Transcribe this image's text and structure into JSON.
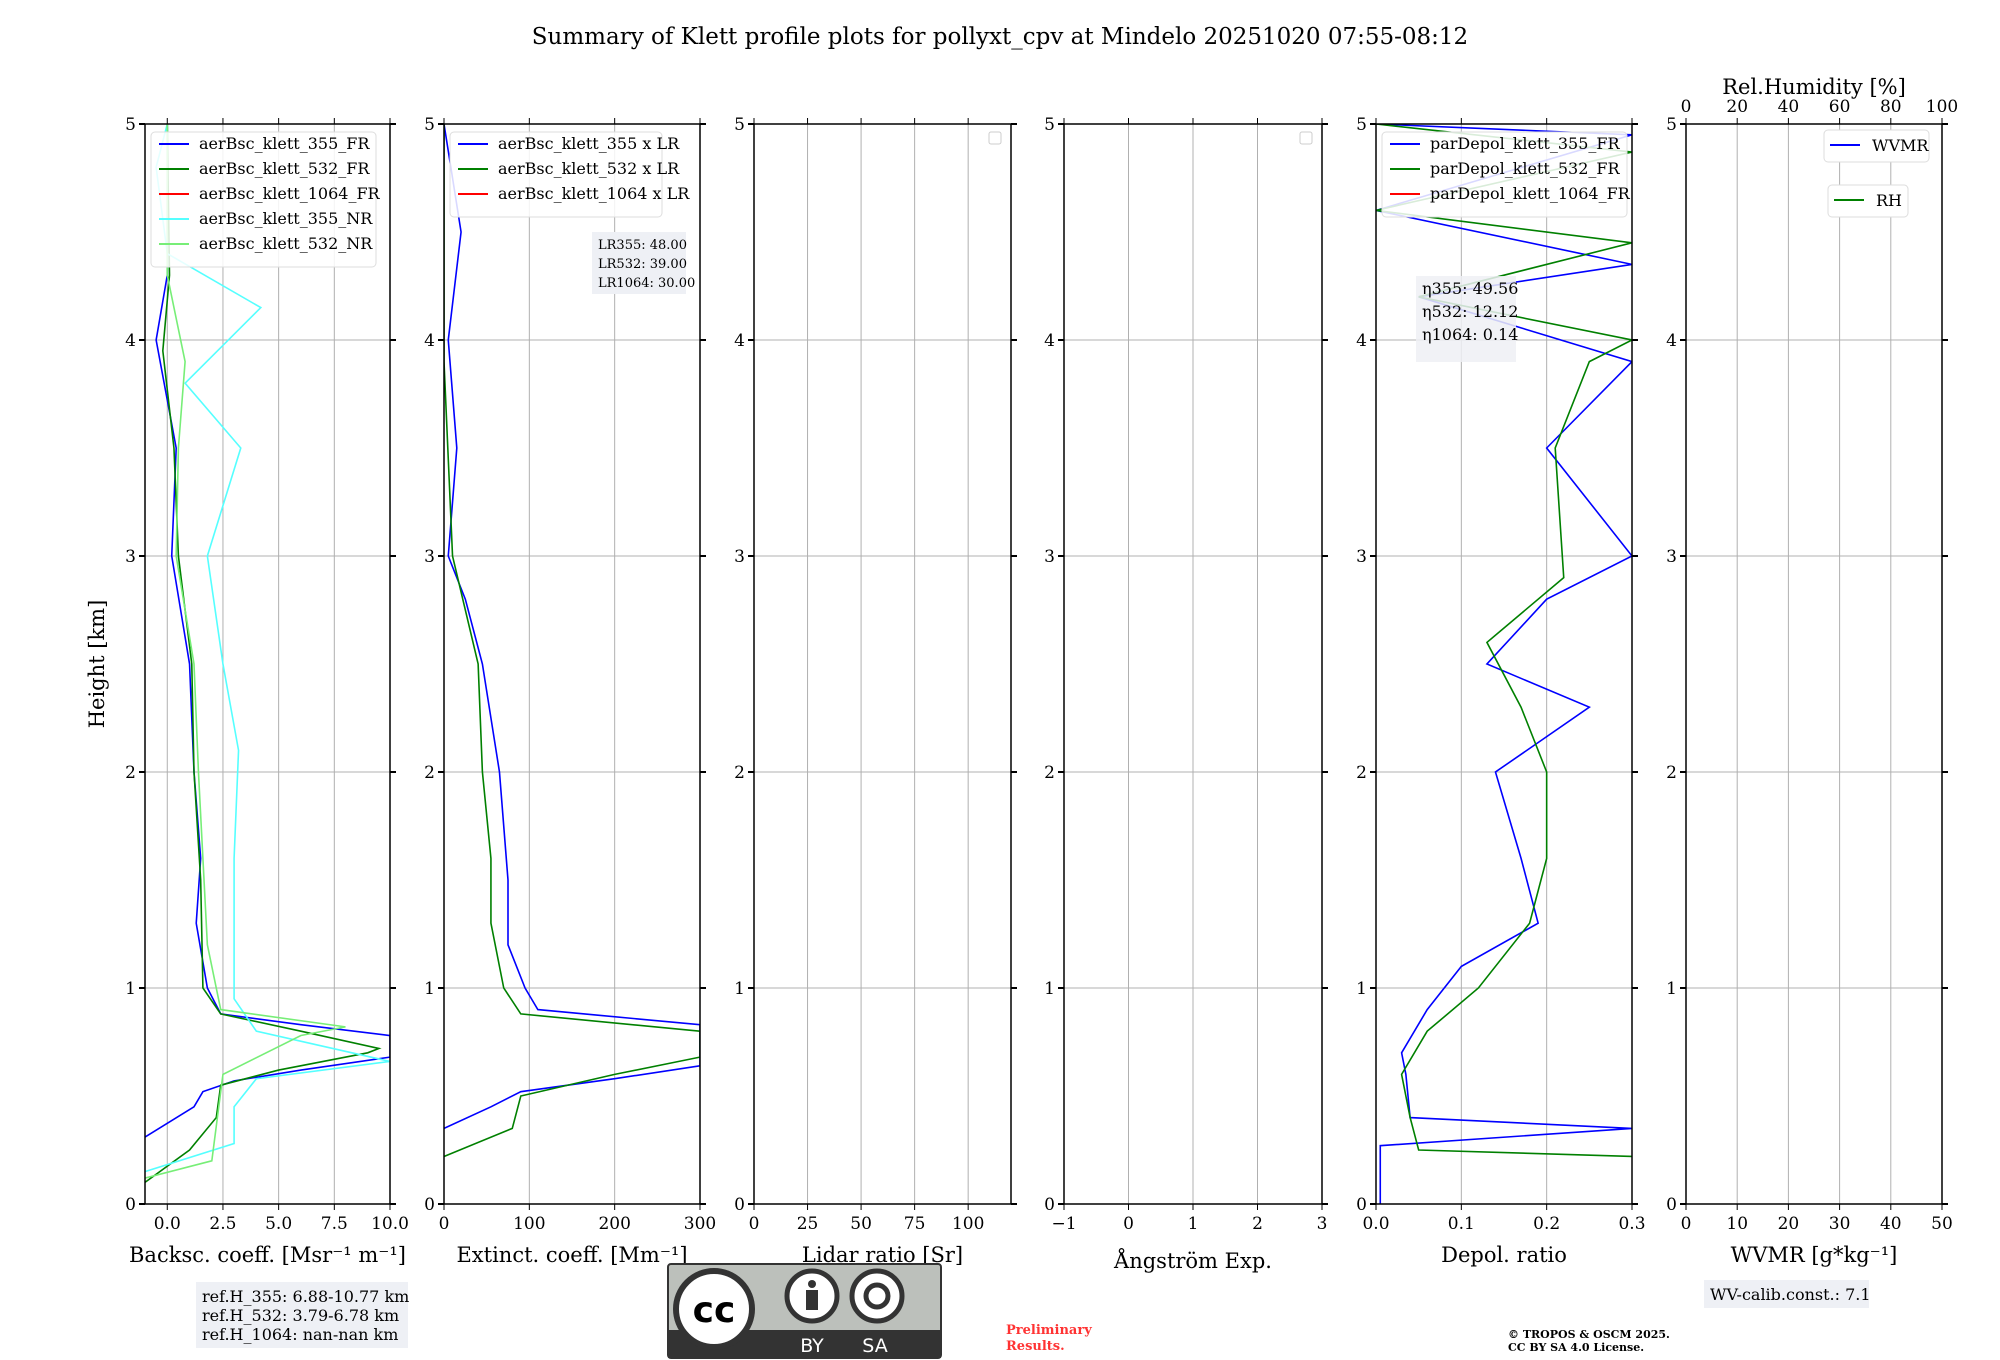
{
  "title": "Summary of Klett profile plots for pollyxt_cpv at Mindelo 20251020 07:55-08:12",
  "ylabel": "Height [km]",
  "colors": {
    "c355": "#0000ff",
    "c532": "#008000",
    "c1064": "#ff0000",
    "c355nr": "#55ffff",
    "c532nr": "#77ee77"
  },
  "chart_data": [
    {
      "type": "line",
      "id": "bsc",
      "xlabel": "Backsc. coeff. [Msr⁻¹ m⁻¹]",
      "xlim": [
        -1,
        10
      ],
      "ylim": [
        0,
        5
      ],
      "xticks": [
        "0.0",
        "2.5",
        "5.0",
        "7.5",
        "10.0"
      ],
      "xtickvals": [
        0,
        2.5,
        5,
        7.5,
        10
      ],
      "legend": [
        "aerBsc_klett_355_FR",
        "aerBsc_klett_532_FR",
        "aerBsc_klett_1064_FR",
        "aerBsc_klett_355_NR",
        "aerBsc_klett_532_NR"
      ],
      "series": [
        {
          "name": "aerBsc_klett_355_FR",
          "color": "#0000ff",
          "points": [
            [
              -1,
              0.31
            ],
            [
              1.2,
              0.45
            ],
            [
              1.6,
              0.52
            ],
            [
              3,
              0.57
            ],
            [
              6,
              0.62
            ],
            [
              10,
              0.68
            ],
            [
              10,
              0.78
            ],
            [
              6,
              0.83
            ],
            [
              2.4,
              0.88
            ],
            [
              1.8,
              1.0
            ],
            [
              1.3,
              1.3
            ],
            [
              1.5,
              1.6
            ],
            [
              1.2,
              2.0
            ],
            [
              1.0,
              2.5
            ],
            [
              0.2,
              3.0
            ],
            [
              0.4,
              3.5
            ],
            [
              -0.5,
              4.0
            ],
            [
              0,
              4.3
            ],
            [
              0,
              5
            ]
          ]
        },
        {
          "name": "aerBsc_klett_532_FR",
          "color": "#008000",
          "points": [
            [
              -1,
              0.1
            ],
            [
              1,
              0.25
            ],
            [
              2.2,
              0.4
            ],
            [
              2.4,
              0.55
            ],
            [
              5,
              0.62
            ],
            [
              9,
              0.7
            ],
            [
              9.5,
              0.72
            ],
            [
              6,
              0.8
            ],
            [
              2.4,
              0.88
            ],
            [
              1.6,
              1.0
            ],
            [
              1.5,
              1.5
            ],
            [
              1.2,
              2.0
            ],
            [
              1.1,
              2.5
            ],
            [
              0.5,
              3.0
            ],
            [
              0.3,
              3.5
            ],
            [
              -0.2,
              3.95
            ],
            [
              0.1,
              4.3
            ],
            [
              0,
              5
            ]
          ]
        },
        {
          "name": "aerBsc_klett_355_NR",
          "color": "#55ffff",
          "points": [
            [
              -1,
              0.15
            ],
            [
              3,
              0.28
            ],
            [
              3,
              0.45
            ],
            [
              4,
              0.58
            ],
            [
              10,
              0.66
            ],
            [
              4,
              0.8
            ],
            [
              3,
              0.95
            ],
            [
              3,
              1.3
            ],
            [
              3,
              1.6
            ],
            [
              3.2,
              2.1
            ],
            [
              2.5,
              2.5
            ],
            [
              1.8,
              3.0
            ],
            [
              3.3,
              3.5
            ],
            [
              0.8,
              3.8
            ],
            [
              4.2,
              4.15
            ],
            [
              0,
              4.4
            ],
            [
              -0.5,
              4.8
            ],
            [
              0,
              5
            ]
          ]
        },
        {
          "name": "aerBsc_klett_532_NR",
          "color": "#77ee77",
          "points": [
            [
              -1,
              0.12
            ],
            [
              2,
              0.2
            ],
            [
              2.5,
              0.6
            ],
            [
              6,
              0.78
            ],
            [
              8,
              0.82
            ],
            [
              2.4,
              0.9
            ],
            [
              1.8,
              1.2
            ],
            [
              1.6,
              1.6
            ],
            [
              1.4,
              2.0
            ],
            [
              1.2,
              2.5
            ],
            [
              0.4,
              3.0
            ],
            [
              0.5,
              3.5
            ],
            [
              0.8,
              3.9
            ],
            [
              0,
              4.3
            ],
            [
              0,
              5
            ]
          ]
        }
      ],
      "annotation": [
        "ref.H_355: 6.88-10.77 km",
        "ref.H_532: 3.79-6.78 km",
        "ref.H_1064: nan-nan km"
      ]
    },
    {
      "type": "line",
      "id": "ext",
      "xlabel": "Extinct. coeff. [Mm⁻¹]",
      "xlim": [
        0,
        300
      ],
      "ylim": [
        0,
        5
      ],
      "xticks": [
        "0",
        "100",
        "200",
        "300"
      ],
      "xtickvals": [
        0,
        100,
        200,
        300
      ],
      "legend": [
        "aerBsc_klett_355 x LR",
        "aerBsc_klett_532 x LR",
        "aerBsc_klett_1064 x LR"
      ],
      "series": [
        {
          "name": "aerBsc_klett_355 x LR",
          "color": "#0000ff",
          "points": [
            [
              0,
              0.35
            ],
            [
              55,
              0.45
            ],
            [
              90,
              0.52
            ],
            [
              200,
              0.58
            ],
            [
              300,
              0.64
            ],
            [
              300,
              0.83
            ],
            [
              110,
              0.9
            ],
            [
              95,
              1.0
            ],
            [
              75,
              1.2
            ],
            [
              75,
              1.5
            ],
            [
              65,
              2.0
            ],
            [
              45,
              2.5
            ],
            [
              25,
              2.8
            ],
            [
              5,
              3.0
            ],
            [
              15,
              3.5
            ],
            [
              5,
              4.0
            ],
            [
              20,
              4.5
            ],
            [
              0,
              5
            ]
          ]
        },
        {
          "name": "aerBsc_klett_532 x LR",
          "color": "#008000",
          "points": [
            [
              0,
              0.22
            ],
            [
              80,
              0.35
            ],
            [
              90,
              0.5
            ],
            [
              200,
              0.6
            ],
            [
              300,
              0.68
            ],
            [
              300,
              0.8
            ],
            [
              90,
              0.88
            ],
            [
              70,
              1.0
            ],
            [
              55,
              1.3
            ],
            [
              55,
              1.6
            ],
            [
              45,
              2.0
            ],
            [
              40,
              2.5
            ],
            [
              10,
              3.0
            ],
            [
              0,
              3.9
            ],
            [
              0,
              5
            ]
          ]
        }
      ],
      "annotation": [
        "LR355: 48.00",
        "LR532: 39.00",
        "LR1064: 30.00"
      ]
    },
    {
      "type": "line",
      "id": "lr",
      "xlabel": "Lidar ratio [Sr]",
      "xlim": [
        0,
        120
      ],
      "ylim": [
        0,
        5
      ],
      "xticks": [
        "0",
        "25",
        "50",
        "75",
        "100"
      ],
      "xtickvals": [
        0,
        25,
        50,
        75,
        100
      ],
      "series": []
    },
    {
      "type": "line",
      "id": "ang",
      "xlabel": "Ångström Exp.",
      "xlim": [
        -1,
        3
      ],
      "ylim": [
        0,
        5
      ],
      "xticks": [
        "−1",
        "0",
        "1",
        "2",
        "3"
      ],
      "xtickvals": [
        -1,
        0,
        1,
        2,
        3
      ],
      "series": []
    },
    {
      "type": "line",
      "id": "depol",
      "xlabel": "Depol. ratio",
      "xlim": [
        0,
        0.3
      ],
      "ylim": [
        0,
        5
      ],
      "xticks": [
        "0.0",
        "0.1",
        "0.2",
        "0.3"
      ],
      "xtickvals": [
        0,
        0.1,
        0.2,
        0.3
      ],
      "legend": [
        "parDepol_klett_355_FR",
        "parDepol_klett_532_FR",
        "parDepol_klett_1064_FR"
      ],
      "series": [
        {
          "name": "parDepol_klett_355_FR",
          "color": "#0000ff",
          "points": [
            [
              0.005,
              0
            ],
            [
              0.005,
              0.27
            ],
            [
              0.3,
              0.35
            ],
            [
              0.04,
              0.4
            ],
            [
              0.035,
              0.6
            ],
            [
              0.03,
              0.7
            ],
            [
              0.06,
              0.9
            ],
            [
              0.1,
              1.1
            ],
            [
              0.19,
              1.3
            ],
            [
              0.17,
              1.6
            ],
            [
              0.14,
              2.0
            ],
            [
              0.25,
              2.3
            ],
            [
              0.13,
              2.5
            ],
            [
              0.2,
              2.8
            ],
            [
              0.3,
              3.0
            ],
            [
              0.2,
              3.5
            ],
            [
              0.3,
              3.9
            ],
            [
              0.05,
              4.2
            ],
            [
              0.3,
              4.35
            ],
            [
              0,
              4.6
            ],
            [
              0.3,
              4.95
            ],
            [
              0,
              5
            ]
          ]
        },
        {
          "name": "parDepol_klett_532_FR",
          "color": "#008000",
          "points": [
            [
              0.3,
              0.22
            ],
            [
              0.05,
              0.25
            ],
            [
              0.04,
              0.4
            ],
            [
              0.03,
              0.6
            ],
            [
              0.06,
              0.8
            ],
            [
              0.12,
              1.0
            ],
            [
              0.18,
              1.3
            ],
            [
              0.2,
              1.6
            ],
            [
              0.2,
              2.0
            ],
            [
              0.17,
              2.3
            ],
            [
              0.13,
              2.6
            ],
            [
              0.22,
              2.9
            ],
            [
              0.21,
              3.5
            ],
            [
              0.25,
              3.9
            ],
            [
              0.3,
              4.0
            ],
            [
              0.05,
              4.2
            ],
            [
              0.3,
              4.45
            ],
            [
              0,
              4.6
            ],
            [
              0.3,
              4.87
            ],
            [
              0,
              5
            ]
          ]
        }
      ],
      "annotation": [
        "η355: 49.56",
        "η532: 12.12",
        "η1064: 0.14"
      ]
    },
    {
      "type": "line",
      "id": "wv",
      "xlabel": "WVMR [g*kg⁻¹]",
      "xlim": [
        0,
        50
      ],
      "ylim": [
        0,
        5
      ],
      "xticks": [
        "0",
        "10",
        "20",
        "30",
        "40",
        "50"
      ],
      "xtickvals": [
        0,
        10,
        20,
        30,
        40,
        50
      ],
      "top_xlabel": "Rel.Humidity [%]",
      "top_xticks": [
        "0",
        "20",
        "40",
        "60",
        "80",
        "100"
      ],
      "legend": [
        "WVMR",
        "RH"
      ],
      "series": [],
      "annotation": [
        "WV-calib.const.: 7.1"
      ]
    }
  ],
  "yticks": [
    "0",
    "1",
    "2",
    "3",
    "4",
    "5"
  ],
  "license": {
    "by": "BY",
    "sa": "SA",
    "cc": "cc"
  },
  "preliminary": [
    "Preliminary",
    "Results."
  ],
  "copyright": [
    "© TROPOS & OSCM 2025.",
    "CC BY SA 4.0 License."
  ]
}
